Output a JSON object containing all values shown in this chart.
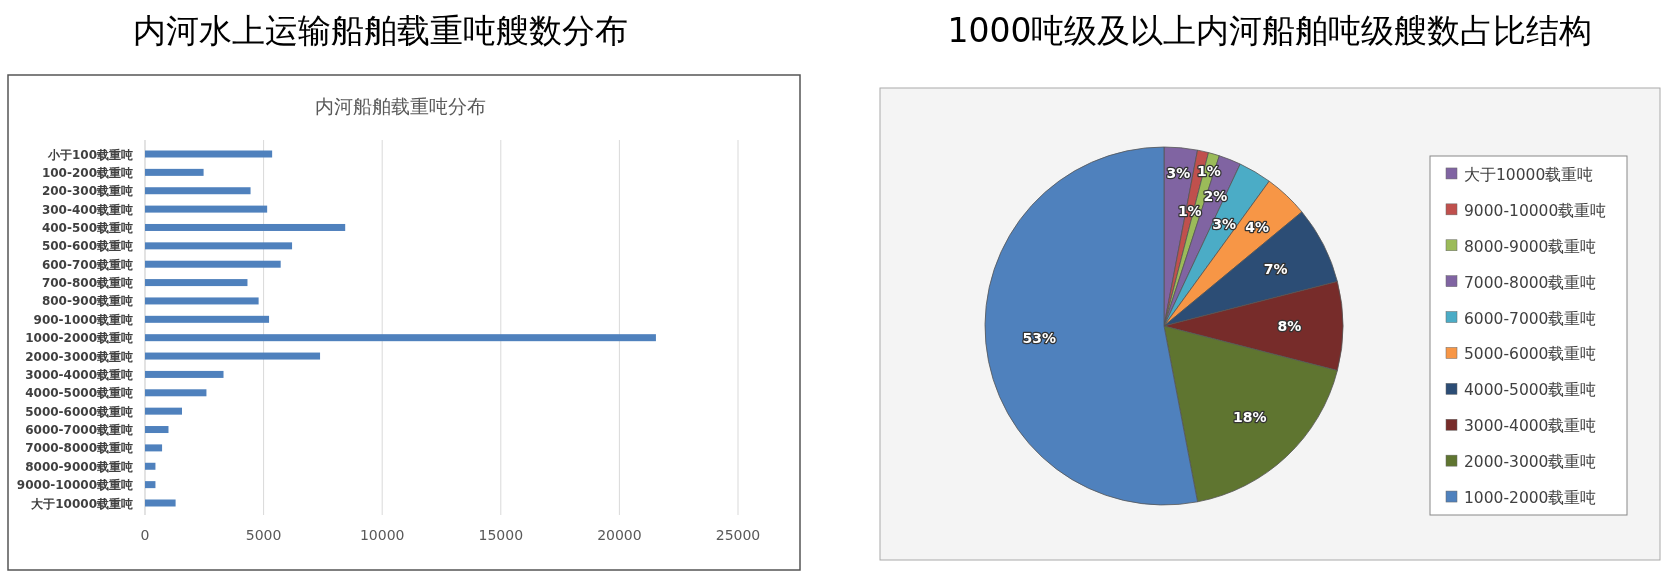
{
  "chart_data": [
    {
      "type": "bar",
      "orientation": "horizontal",
      "title": "内河水上运输船舶载重吨艘数分布",
      "subtitle": "内河船舶载重吨分布",
      "categories": [
        "小于100载重吨",
        "100-200载重吨",
        "200-300载重吨",
        "300-400载重吨",
        "400-500载重吨",
        "500-600载重吨",
        "600-700载重吨",
        "700-800载重吨",
        "800-900载重吨",
        "900-1000载重吨",
        "1000-2000载重吨",
        "2000-3000载重吨",
        "3000-4000载重吨",
        "4000-5000载重吨",
        "5000-6000载重吨",
        "6000-7000载重吨",
        "7000-8000载重吨",
        "8000-9000载重吨",
        "9000-10000载重吨",
        "大于10000载重吨"
      ],
      "values": [
        5360,
        2470,
        4450,
        5150,
        8440,
        6200,
        5720,
        4320,
        4790,
        5230,
        21540,
        7380,
        3310,
        2590,
        1560,
        990,
        720,
        440,
        440,
        1290
      ],
      "color": "#4f81bd",
      "xlim": [
        0,
        25000
      ],
      "xticks": [
        0,
        5000,
        10000,
        15000,
        20000,
        25000
      ],
      "grid": "x"
    },
    {
      "type": "pie",
      "title": "1000吨级及以上内河船舶吨级艘数占比结构",
      "categories": [
        "大于10000载重吨",
        "9000-10000载重吨",
        "8000-9000载重吨",
        "7000-8000载重吨",
        "6000-7000载重吨",
        "5000-6000载重吨",
        "4000-5000载重吨",
        "3000-4000载重吨",
        "2000-3000载重吨",
        "1000-2000载重吨"
      ],
      "values": [
        3,
        1,
        1,
        2,
        3,
        4,
        7,
        8,
        18,
        53
      ],
      "value_labels": [
        "3%",
        "1%",
        "1%",
        "2%",
        "3%",
        "4%",
        "7%",
        "8%",
        "18%",
        "53%"
      ],
      "colors": [
        "#8064a2",
        "#c0504d",
        "#9bbb59",
        "#8064a2",
        "#4bacc6",
        "#f79646",
        "#2c4d75",
        "#772c2a",
        "#5f7530",
        "#4f81bd"
      ],
      "legend": "right"
    }
  ]
}
